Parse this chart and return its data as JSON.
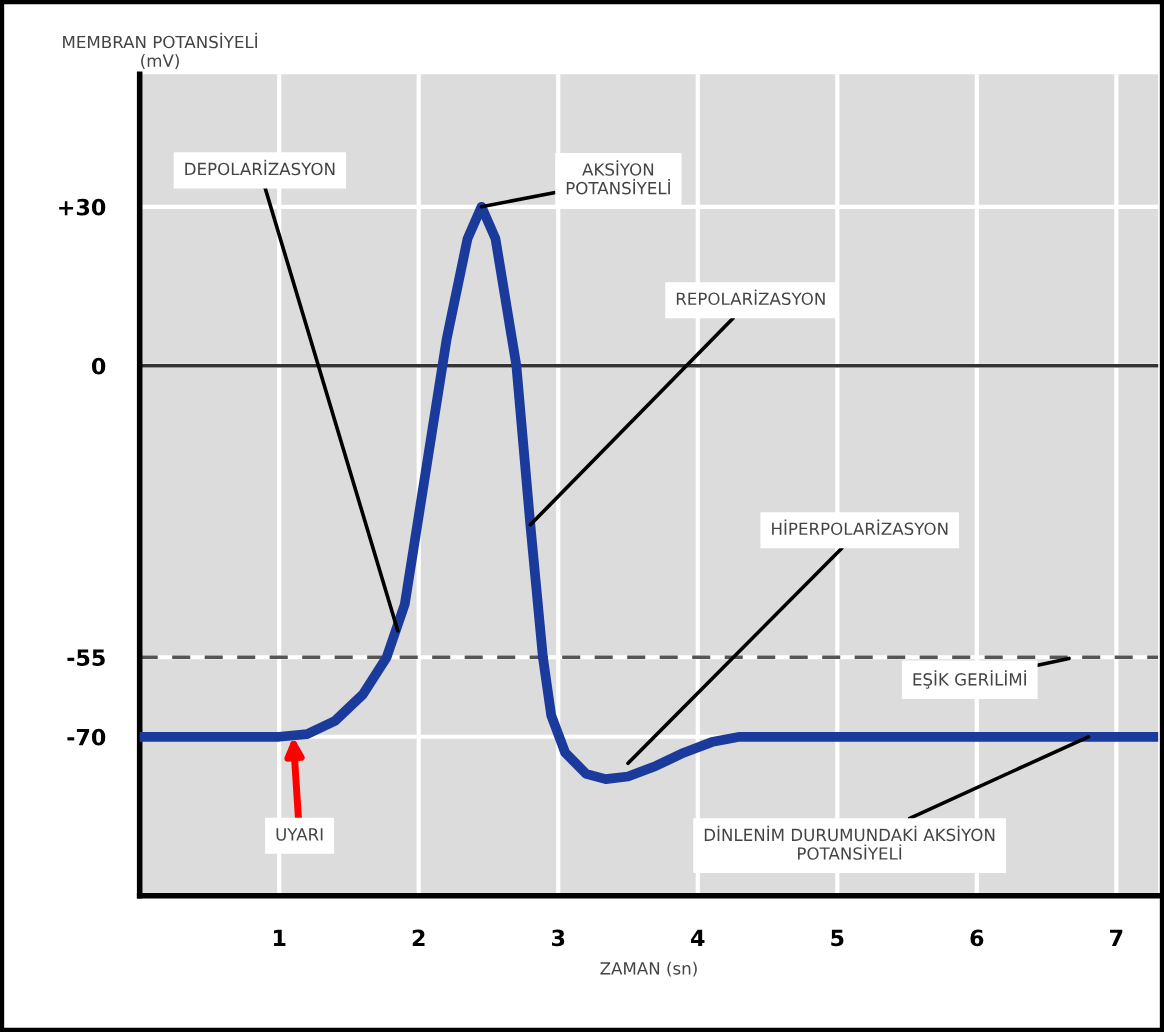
{
  "chart_data": {
    "type": "line",
    "xlabel": "ZAMAN (sn)",
    "ylabel": "MEMBRAN POTANSİYELİ\n(mV)",
    "x": [
      0,
      1,
      1.2,
      1.4,
      1.6,
      1.77,
      1.9,
      2.05,
      2.2,
      2.35,
      2.45,
      2.55,
      2.7,
      2.8,
      2.89,
      2.95,
      3.05,
      3.2,
      3.34,
      3.5,
      3.7,
      3.9,
      4.1,
      4.3,
      5,
      6,
      7.3
    ],
    "series": [
      {
        "color": "#1a3a9c",
        "values": [
          -70,
          -70,
          -69.5,
          -67,
          -62,
          -55,
          -45,
          -20,
          5,
          24,
          30,
          24,
          0,
          -30,
          -55,
          -66,
          -73,
          -77,
          -78,
          -77.5,
          -75.5,
          -73,
          -71,
          -70,
          -70,
          -70,
          -70
        ]
      }
    ],
    "xlim": [
      0,
      7.3
    ],
    "ylim": [
      -100,
      55
    ],
    "xticks": [
      1,
      2,
      3,
      4,
      5,
      6,
      7
    ],
    "yticks": [
      -70,
      -55,
      0,
      {
        "value": 30,
        "label": "+30"
      }
    ],
    "grid": true,
    "marker": "none",
    "line_style": "solid",
    "legend": false,
    "ref_lines": [
      {
        "axis": "y",
        "value": 0,
        "color": "#333333",
        "line_style": "solid"
      },
      {
        "axis": "y",
        "value": -55,
        "label": "EŞİK GERİLİMİ",
        "color": "#555555",
        "line_style": "dashed"
      }
    ],
    "annotations": [
      {
        "text": "DEPOLARİZASYON",
        "x": 1.85,
        "y": -50
      },
      {
        "text": "AKSİYON\nPOTANSİYELİ",
        "x": 2.45,
        "y": 30
      },
      {
        "text": "REPOLARİZASYON",
        "x": 2.8,
        "y": -30
      },
      {
        "text": "HİPERPOLARİZASYON",
        "x": 3.5,
        "y": -75
      },
      {
        "text": "UYARI",
        "x": 1.1,
        "y": -70
      },
      {
        "text": "DİNLENİM DURUMUNDAKİ AKSİYON\nPOTANSİYELİ",
        "x": 6.8,
        "y": -70
      }
    ]
  }
}
